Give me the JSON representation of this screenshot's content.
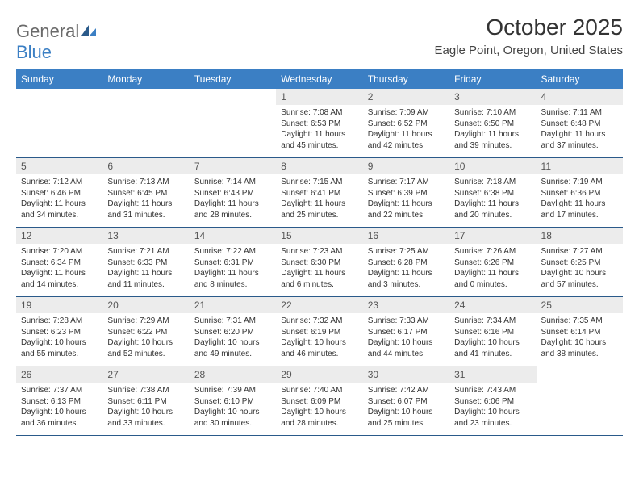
{
  "logo": {
    "word1": "General",
    "word2": "Blue",
    "text_color": "#6a6a6a",
    "accent": "#3b7fc4"
  },
  "title": "October 2025",
  "location": "Eagle Point, Oregon, United States",
  "header_bg": "#3b7fc4",
  "header_fg": "#ffffff",
  "daynum_bg": "#ececec",
  "border_color": "#2a5a8a",
  "day_names": [
    "Sunday",
    "Monday",
    "Tuesday",
    "Wednesday",
    "Thursday",
    "Friday",
    "Saturday"
  ],
  "weeks": [
    [
      {
        "n": "",
        "lines": []
      },
      {
        "n": "",
        "lines": []
      },
      {
        "n": "",
        "lines": []
      },
      {
        "n": "1",
        "lines": [
          "Sunrise: 7:08 AM",
          "Sunset: 6:53 PM",
          "Daylight: 11 hours and 45 minutes."
        ]
      },
      {
        "n": "2",
        "lines": [
          "Sunrise: 7:09 AM",
          "Sunset: 6:52 PM",
          "Daylight: 11 hours and 42 minutes."
        ]
      },
      {
        "n": "3",
        "lines": [
          "Sunrise: 7:10 AM",
          "Sunset: 6:50 PM",
          "Daylight: 11 hours and 39 minutes."
        ]
      },
      {
        "n": "4",
        "lines": [
          "Sunrise: 7:11 AM",
          "Sunset: 6:48 PM",
          "Daylight: 11 hours and 37 minutes."
        ]
      }
    ],
    [
      {
        "n": "5",
        "lines": [
          "Sunrise: 7:12 AM",
          "Sunset: 6:46 PM",
          "Daylight: 11 hours and 34 minutes."
        ]
      },
      {
        "n": "6",
        "lines": [
          "Sunrise: 7:13 AM",
          "Sunset: 6:45 PM",
          "Daylight: 11 hours and 31 minutes."
        ]
      },
      {
        "n": "7",
        "lines": [
          "Sunrise: 7:14 AM",
          "Sunset: 6:43 PM",
          "Daylight: 11 hours and 28 minutes."
        ]
      },
      {
        "n": "8",
        "lines": [
          "Sunrise: 7:15 AM",
          "Sunset: 6:41 PM",
          "Daylight: 11 hours and 25 minutes."
        ]
      },
      {
        "n": "9",
        "lines": [
          "Sunrise: 7:17 AM",
          "Sunset: 6:39 PM",
          "Daylight: 11 hours and 22 minutes."
        ]
      },
      {
        "n": "10",
        "lines": [
          "Sunrise: 7:18 AM",
          "Sunset: 6:38 PM",
          "Daylight: 11 hours and 20 minutes."
        ]
      },
      {
        "n": "11",
        "lines": [
          "Sunrise: 7:19 AM",
          "Sunset: 6:36 PM",
          "Daylight: 11 hours and 17 minutes."
        ]
      }
    ],
    [
      {
        "n": "12",
        "lines": [
          "Sunrise: 7:20 AM",
          "Sunset: 6:34 PM",
          "Daylight: 11 hours and 14 minutes."
        ]
      },
      {
        "n": "13",
        "lines": [
          "Sunrise: 7:21 AM",
          "Sunset: 6:33 PM",
          "Daylight: 11 hours and 11 minutes."
        ]
      },
      {
        "n": "14",
        "lines": [
          "Sunrise: 7:22 AM",
          "Sunset: 6:31 PM",
          "Daylight: 11 hours and 8 minutes."
        ]
      },
      {
        "n": "15",
        "lines": [
          "Sunrise: 7:23 AM",
          "Sunset: 6:30 PM",
          "Daylight: 11 hours and 6 minutes."
        ]
      },
      {
        "n": "16",
        "lines": [
          "Sunrise: 7:25 AM",
          "Sunset: 6:28 PM",
          "Daylight: 11 hours and 3 minutes."
        ]
      },
      {
        "n": "17",
        "lines": [
          "Sunrise: 7:26 AM",
          "Sunset: 6:26 PM",
          "Daylight: 11 hours and 0 minutes."
        ]
      },
      {
        "n": "18",
        "lines": [
          "Sunrise: 7:27 AM",
          "Sunset: 6:25 PM",
          "Daylight: 10 hours and 57 minutes."
        ]
      }
    ],
    [
      {
        "n": "19",
        "lines": [
          "Sunrise: 7:28 AM",
          "Sunset: 6:23 PM",
          "Daylight: 10 hours and 55 minutes."
        ]
      },
      {
        "n": "20",
        "lines": [
          "Sunrise: 7:29 AM",
          "Sunset: 6:22 PM",
          "Daylight: 10 hours and 52 minutes."
        ]
      },
      {
        "n": "21",
        "lines": [
          "Sunrise: 7:31 AM",
          "Sunset: 6:20 PM",
          "Daylight: 10 hours and 49 minutes."
        ]
      },
      {
        "n": "22",
        "lines": [
          "Sunrise: 7:32 AM",
          "Sunset: 6:19 PM",
          "Daylight: 10 hours and 46 minutes."
        ]
      },
      {
        "n": "23",
        "lines": [
          "Sunrise: 7:33 AM",
          "Sunset: 6:17 PM",
          "Daylight: 10 hours and 44 minutes."
        ]
      },
      {
        "n": "24",
        "lines": [
          "Sunrise: 7:34 AM",
          "Sunset: 6:16 PM",
          "Daylight: 10 hours and 41 minutes."
        ]
      },
      {
        "n": "25",
        "lines": [
          "Sunrise: 7:35 AM",
          "Sunset: 6:14 PM",
          "Daylight: 10 hours and 38 minutes."
        ]
      }
    ],
    [
      {
        "n": "26",
        "lines": [
          "Sunrise: 7:37 AM",
          "Sunset: 6:13 PM",
          "Daylight: 10 hours and 36 minutes."
        ]
      },
      {
        "n": "27",
        "lines": [
          "Sunrise: 7:38 AM",
          "Sunset: 6:11 PM",
          "Daylight: 10 hours and 33 minutes."
        ]
      },
      {
        "n": "28",
        "lines": [
          "Sunrise: 7:39 AM",
          "Sunset: 6:10 PM",
          "Daylight: 10 hours and 30 minutes."
        ]
      },
      {
        "n": "29",
        "lines": [
          "Sunrise: 7:40 AM",
          "Sunset: 6:09 PM",
          "Daylight: 10 hours and 28 minutes."
        ]
      },
      {
        "n": "30",
        "lines": [
          "Sunrise: 7:42 AM",
          "Sunset: 6:07 PM",
          "Daylight: 10 hours and 25 minutes."
        ]
      },
      {
        "n": "31",
        "lines": [
          "Sunrise: 7:43 AM",
          "Sunset: 6:06 PM",
          "Daylight: 10 hours and 23 minutes."
        ]
      },
      {
        "n": "",
        "lines": []
      }
    ]
  ]
}
